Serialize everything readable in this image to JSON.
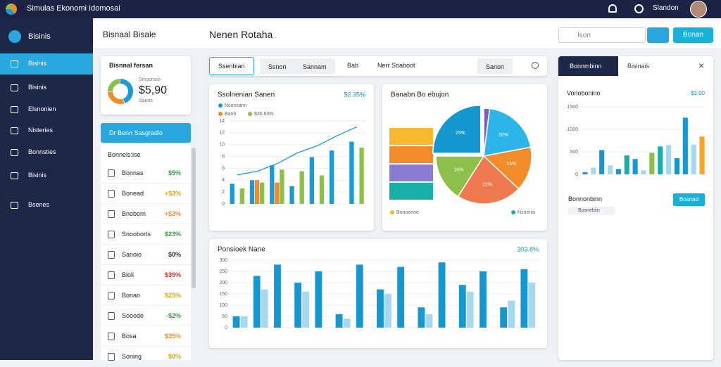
{
  "topbar": {
    "title": "Simulas Ekonomi Idomosai",
    "user": "Slandon"
  },
  "sidebar": {
    "brand": "Bisinis",
    "items": [
      "Bisinis",
      "Bisinis",
      "Elsnonien",
      "Nisteries",
      "Bonnsties",
      "Bisinis",
      "Bsenes"
    ]
  },
  "header": {
    "left_title": "Bisnaal Bisale",
    "title": "Nenen Rotaha",
    "search_placeholder": "Ison",
    "button": "Bonan"
  },
  "summary": {
    "title": "Bisnnal fersan",
    "caption": "Smsonsio",
    "amount": "$5,90",
    "note": "Sanos",
    "donut": {
      "values": [
        45,
        30,
        25
      ],
      "colors": [
        "#1a9bd7",
        "#f28c28",
        "#8cc04a"
      ]
    }
  },
  "action_button": "Dr Benn Sasgradio",
  "list": {
    "title": "Bonnels:ise",
    "rows": [
      {
        "name": "Bonnas",
        "value": "$5%",
        "color": "#2e9e3e"
      },
      {
        "name": "Bonead",
        "value": "+$3%",
        "color": "#e0a800"
      },
      {
        "name": "Bnoborn",
        "value": "+$3%",
        "color": "#f28c28"
      },
      {
        "name": "Snooborts",
        "value": "$23%",
        "color": "#2e9e3e"
      },
      {
        "name": "Sanoio",
        "value": "$0%",
        "color": "#333333"
      },
      {
        "name": "Bioli",
        "value": "$35%",
        "color": "#d9342b"
      },
      {
        "name": "Bonan",
        "value": "$25%",
        "color": "#e0a800"
      },
      {
        "name": "Sooode",
        "value": "-$2%",
        "color": "#2e9e3e"
      },
      {
        "name": "Bosa",
        "value": "$35%",
        "color": "#f28c28"
      },
      {
        "name": "Soning",
        "value": "$0%",
        "color": "#e0a800"
      }
    ]
  },
  "tabs": [
    "Ssenbian",
    "Ssnon",
    "Sannam",
    "Bab",
    "Nerr Soaboot",
    "Sanon"
  ],
  "charts": [
    {
      "type": "bar",
      "title": "Ssolnenian Sanen",
      "annotation": "$2.35%",
      "ylim": [
        0,
        14
      ],
      "yticks": [
        0,
        2,
        4,
        6,
        8,
        10,
        12,
        14
      ],
      "series": [
        {
          "name": "Nsonsann",
          "color": "#1a9bd7",
          "values": [
            3.4,
            4.0,
            6.5,
            3.0,
            7.9,
            9.0,
            10.5
          ]
        },
        {
          "name": "Banb",
          "color": "#f28c28",
          "values": [
            0,
            4.0,
            3.6,
            0,
            0,
            0,
            0
          ]
        },
        {
          "name": "$36.83%",
          "color": "#8cc04a",
          "values": [
            2.6,
            3.6,
            5.8,
            5.5,
            4.8,
            0,
            9.5
          ]
        },
        {
          "type": "line",
          "color": "#1a9bd7",
          "values": [
            4.9,
            5.5,
            6.8,
            8.6,
            9.8,
            11.5,
            13.0
          ]
        }
      ]
    },
    {
      "type": "pie",
      "title": "Banabn Bo ebujon",
      "values": [
        2,
        20,
        15,
        22,
        16,
        25
      ],
      "value_labels": [
        null,
        "20%",
        "15%",
        "22%",
        "16%",
        "25%"
      ],
      "colors": [
        "#7a5fc0",
        "#2bb5e8",
        "#f28c28",
        "#ef7a4f",
        "#8cc04a",
        "#1597cf"
      ],
      "bars": [
        {
          "color": "#f5b82e",
          "value": 62
        },
        {
          "color": "#f28c28",
          "value": 62
        },
        {
          "color": "#8a7bd0",
          "value": 62
        },
        {
          "color": "#17b0a8",
          "value": 62
        }
      ],
      "legend": [
        {
          "name": "Bonoenne",
          "color": "#f5b82e"
        },
        {
          "name": "Nsnenis",
          "color": "#17b0a8"
        }
      ]
    },
    {
      "type": "bar",
      "title": "Ponsioek Nane",
      "annotation": "303.8%",
      "ylim": [
        0,
        300
      ],
      "yticks": [
        0,
        50,
        100,
        150,
        200,
        250,
        300
      ],
      "series": [
        {
          "color": "#1597cf",
          "values": [
            50,
            230,
            280,
            200,
            250,
            60,
            280,
            170,
            270,
            90,
            290,
            190,
            250,
            90,
            260
          ]
        },
        {
          "color": "#a6d8f0",
          "values": [
            50,
            170,
            0,
            160,
            0,
            40,
            0,
            150,
            0,
            60,
            0,
            160,
            0,
            120,
            200
          ]
        }
      ]
    },
    {
      "type": "bar",
      "title": "Vonobonino",
      "annotation": "$3.00",
      "ylim": [
        0,
        1500
      ],
      "yticks": [
        0,
        500,
        1000,
        1500
      ],
      "values": [
        50,
        150,
        540,
        200,
        120,
        420,
        340,
        90,
        480,
        620,
        650,
        360,
        1260,
        660,
        840
      ],
      "colors": [
        "#1597cf",
        "#a6d8f0",
        "#1597cf",
        "#a6d8f0",
        "#1597cf",
        "#17b0a8",
        "#1597cf",
        "#a6d8f0",
        "#8cc04a",
        "#17b0a8",
        "#a6d8f0",
        "#1597cf",
        "#1597cf",
        "#a6d8f0",
        "#f5a623"
      ]
    }
  ],
  "right_panel": {
    "tabs": [
      "Bonnmbinn",
      "Bisinais"
    ],
    "section": "Bonnonbinn",
    "button": "Bosnad",
    "item": "Bosnebiin"
  }
}
